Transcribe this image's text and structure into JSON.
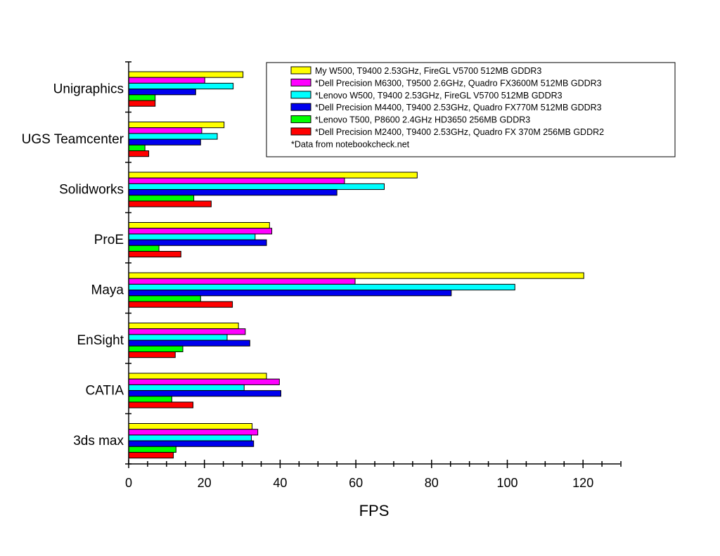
{
  "chart_data": {
    "type": "bar",
    "orientation": "horizontal",
    "xlabel": "FPS",
    "xlim": [
      0,
      130
    ],
    "x_ticks": [
      0,
      20,
      40,
      60,
      80,
      100,
      120
    ],
    "x_tick_labels": [
      "0",
      "20",
      "40",
      "60",
      "80",
      "100",
      "120"
    ],
    "categories": [
      "Unigraphics",
      "UGS Teamcenter",
      "Solidworks",
      "ProE",
      "Maya",
      "EnSight",
      "CATIA",
      "3ds max"
    ],
    "series": [
      {
        "name": "My W500, T9400 2.53GHz, FireGL V5700 512MB GDDR3",
        "color": "#ffff00",
        "values": [
          30.2,
          25.2,
          76.2,
          37.2,
          120.2,
          29.0,
          36.4,
          32.6
        ]
      },
      {
        "name": "*Dell Precision M6300, T9500 2.6GHz, Quadro FX3600M 512MB GDDR3",
        "color": "#ff00ff",
        "values": [
          20.1,
          19.3,
          57.0,
          37.8,
          59.8,
          30.8,
          39.8,
          34.1
        ]
      },
      {
        "name": "*Lenovo W500, T9400 2.53GHz, FireGL V5700 512MB GDDR3",
        "color": "#00ffff",
        "values": [
          27.6,
          23.4,
          67.5,
          33.4,
          102.0,
          26.0,
          30.5,
          32.4
        ]
      },
      {
        "name": "*Dell Precision M4400, T9400 2.53GHz, Quadro FX770M 512MB GDDR3",
        "color": "#0000ee",
        "values": [
          17.7,
          19.0,
          55.0,
          36.4,
          85.2,
          32.0,
          40.2,
          33.0
        ]
      },
      {
        "name": "*Lenovo T500, P8600 2.4GHz HD3650 256MB GDDR3",
        "color": "#00ff00",
        "values": [
          7.0,
          4.3,
          17.2,
          8.0,
          19.0,
          14.3,
          11.4,
          12.5
        ]
      },
      {
        "name": "*Dell Precision M2400, T9400 2.53GHz, Quadro FX 370M 256MB GDDR2",
        "color": "#ff0000",
        "values": [
          7.0,
          5.3,
          21.8,
          13.8,
          27.4,
          12.3,
          17.0,
          11.8
        ]
      }
    ],
    "legend_note": "*Data from notebookcheck.net",
    "legend_position": "top-right"
  }
}
